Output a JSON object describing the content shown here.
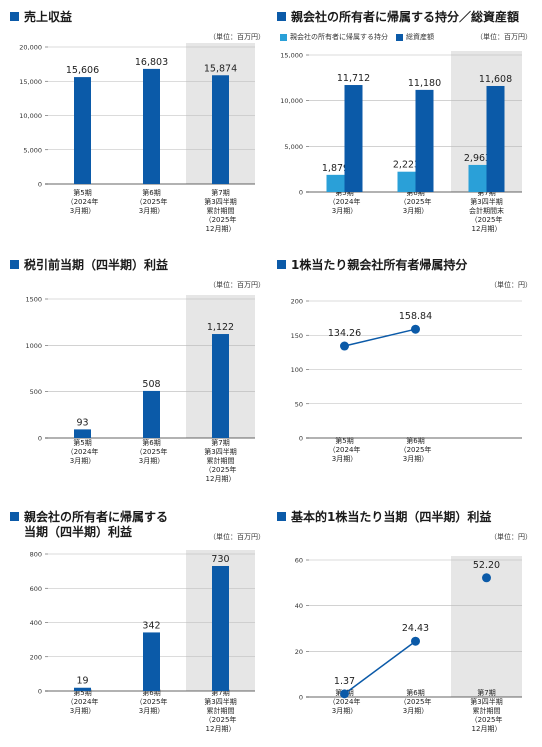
{
  "chart_data": [
    {
      "type": "bar",
      "title": "売上収益",
      "unit": "（単位：百万円）",
      "ylim": [
        0,
        20000
      ],
      "yticks": [
        "0",
        "5,000",
        "10,000",
        "15,000",
        "20,000"
      ],
      "ytick_values": [
        0,
        5000,
        10000,
        15000,
        20000
      ],
      "categories": [
        [
          "第5期",
          "（2024年",
          "3月期）"
        ],
        [
          "第6期",
          "（2025年",
          "3月期）"
        ],
        [
          "第7期",
          "第3四半期",
          "累計期間",
          "（2025年",
          "12月期）"
        ]
      ],
      "series": [
        {
          "values": [
            15606,
            16803,
            15874
          ],
          "labels": [
            "15,606",
            "16,803",
            "15,874"
          ],
          "color": "#0b5aa8"
        }
      ],
      "highlight_last": true
    },
    {
      "type": "bar",
      "title": "親会社の所有者に帰属する持分／総資産額",
      "unit": "（単位：百万円）",
      "ylim": [
        0,
        15000
      ],
      "yticks": [
        "0",
        "5,000",
        "10,000",
        "15,000"
      ],
      "ytick_values": [
        0,
        5000,
        10000,
        15000
      ],
      "legend": [
        "親会社の所有者に帰属する持分",
        "総資産額"
      ],
      "categories": [
        [
          "第5期",
          "（2024年",
          "3月期）"
        ],
        [
          "第6期",
          "（2025年",
          "3月期）"
        ],
        [
          "第7期",
          "第3四半期",
          "会計期間末",
          "（2025年",
          "12月期）"
        ]
      ],
      "series": [
        {
          "name": "親会社の所有者に帰属する持分",
          "values": [
            1879,
            2223,
            2963
          ],
          "labels": [
            "1,879",
            "2,223",
            "2,963"
          ],
          "color": "#2aa0d8"
        },
        {
          "name": "総資産額",
          "values": [
            11712,
            11180,
            11608
          ],
          "labels": [
            "11,712",
            "11,180",
            "11,608"
          ],
          "color": "#0b5aa8"
        }
      ],
      "highlight_last": true
    },
    {
      "type": "bar",
      "title": "税引前当期（四半期）利益",
      "unit": "（単位：百万円）",
      "ylim": [
        0,
        1500
      ],
      "yticks": [
        "0",
        "500",
        "1000",
        "1500"
      ],
      "ytick_values": [
        0,
        500,
        1000,
        1500
      ],
      "categories": [
        [
          "第5期",
          "（2024年",
          "3月期）"
        ],
        [
          "第6期",
          "（2025年",
          "3月期）"
        ],
        [
          "第7期",
          "第3四半期",
          "累計期間",
          "（2025年",
          "12月期）"
        ]
      ],
      "series": [
        {
          "values": [
            93,
            508,
            1122
          ],
          "labels": [
            "93",
            "508",
            "1,122"
          ],
          "color": "#0b5aa8"
        }
      ],
      "highlight_last": true
    },
    {
      "type": "line",
      "title": "1株当たり親会社所有者帰属持分",
      "unit": "（単位：円）",
      "ylim": [
        0,
        200
      ],
      "yticks": [
        "0",
        "50",
        "100",
        "150",
        "200"
      ],
      "ytick_values": [
        0,
        50,
        100,
        150,
        200
      ],
      "categories": [
        [
          "第5期",
          "（2024年",
          "3月期）"
        ],
        [
          "第6期",
          "（2025年",
          "3月期）"
        ]
      ],
      "series": [
        {
          "values": [
            134.26,
            158.84
          ],
          "labels": [
            "134.26",
            "158.84"
          ],
          "color": "#0b5aa8"
        }
      ],
      "highlight_last": false
    },
    {
      "type": "bar",
      "title": "親会社の所有者に帰属する",
      "title2": "当期（四半期）利益",
      "unit": "（単位：百万円）",
      "ylim": [
        0,
        800
      ],
      "yticks": [
        "0",
        "200",
        "400",
        "600",
        "800"
      ],
      "ytick_values": [
        0,
        200,
        400,
        600,
        800
      ],
      "categories": [
        [
          "第5期",
          "（2024年",
          "3月期）"
        ],
        [
          "第6期",
          "（2025年",
          "3月期）"
        ],
        [
          "第7期",
          "第3四半期",
          "累計期間",
          "（2025年",
          "12月期）"
        ]
      ],
      "series": [
        {
          "values": [
            19,
            342,
            730
          ],
          "labels": [
            "19",
            "342",
            "730"
          ],
          "color": "#0b5aa8"
        }
      ],
      "highlight_last": true
    },
    {
      "type": "line",
      "title": "基本的1株当たり当期（四半期）利益",
      "unit": "（単位：円）",
      "ylim": [
        0,
        60
      ],
      "yticks": [
        "0",
        "20",
        "40",
        "60"
      ],
      "ytick_values": [
        0,
        20,
        40,
        60
      ],
      "categories": [
        [
          "第5期",
          "（2024年",
          "3月期）"
        ],
        [
          "第6期",
          "（2025年",
          "3月期）"
        ],
        [
          "第7期",
          "第3四半期",
          "累計期間",
          "（2025年",
          "12月期）"
        ]
      ],
      "series": [
        {
          "values": [
            1.37,
            24.43,
            52.2
          ],
          "labels": [
            "1.37",
            "24.43",
            "52.20"
          ],
          "color": "#0b5aa8"
        }
      ],
      "highlight_last": true,
      "connect_points": 2
    }
  ]
}
